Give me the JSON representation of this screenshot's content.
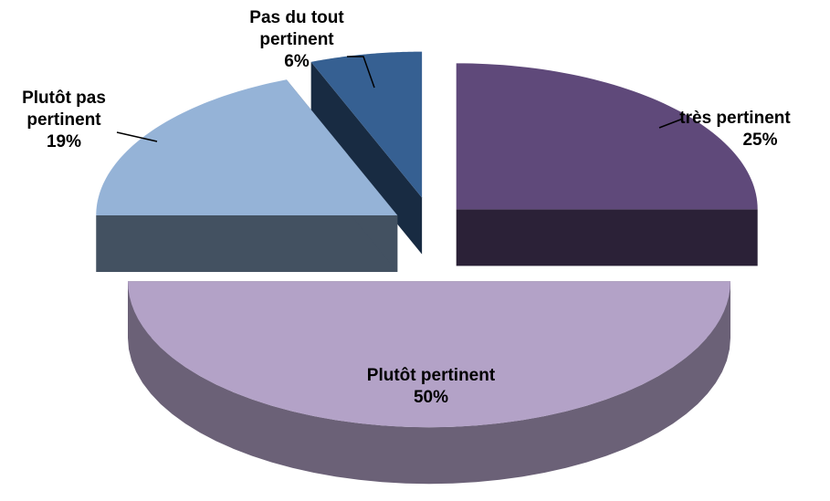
{
  "chart_data": {
    "type": "pie",
    "categories": [
      "très pertinent",
      "Plutôt pertinent",
      "Plutôt pas pertinent",
      "Pas du tout pertinent"
    ],
    "values": [
      25,
      50,
      19,
      6
    ],
    "value_labels": [
      "25%",
      "50%",
      "19%",
      "6%"
    ],
    "colors": [
      "#5f497a",
      "#b3a2c7",
      "#95b3d7",
      "#366092"
    ]
  }
}
